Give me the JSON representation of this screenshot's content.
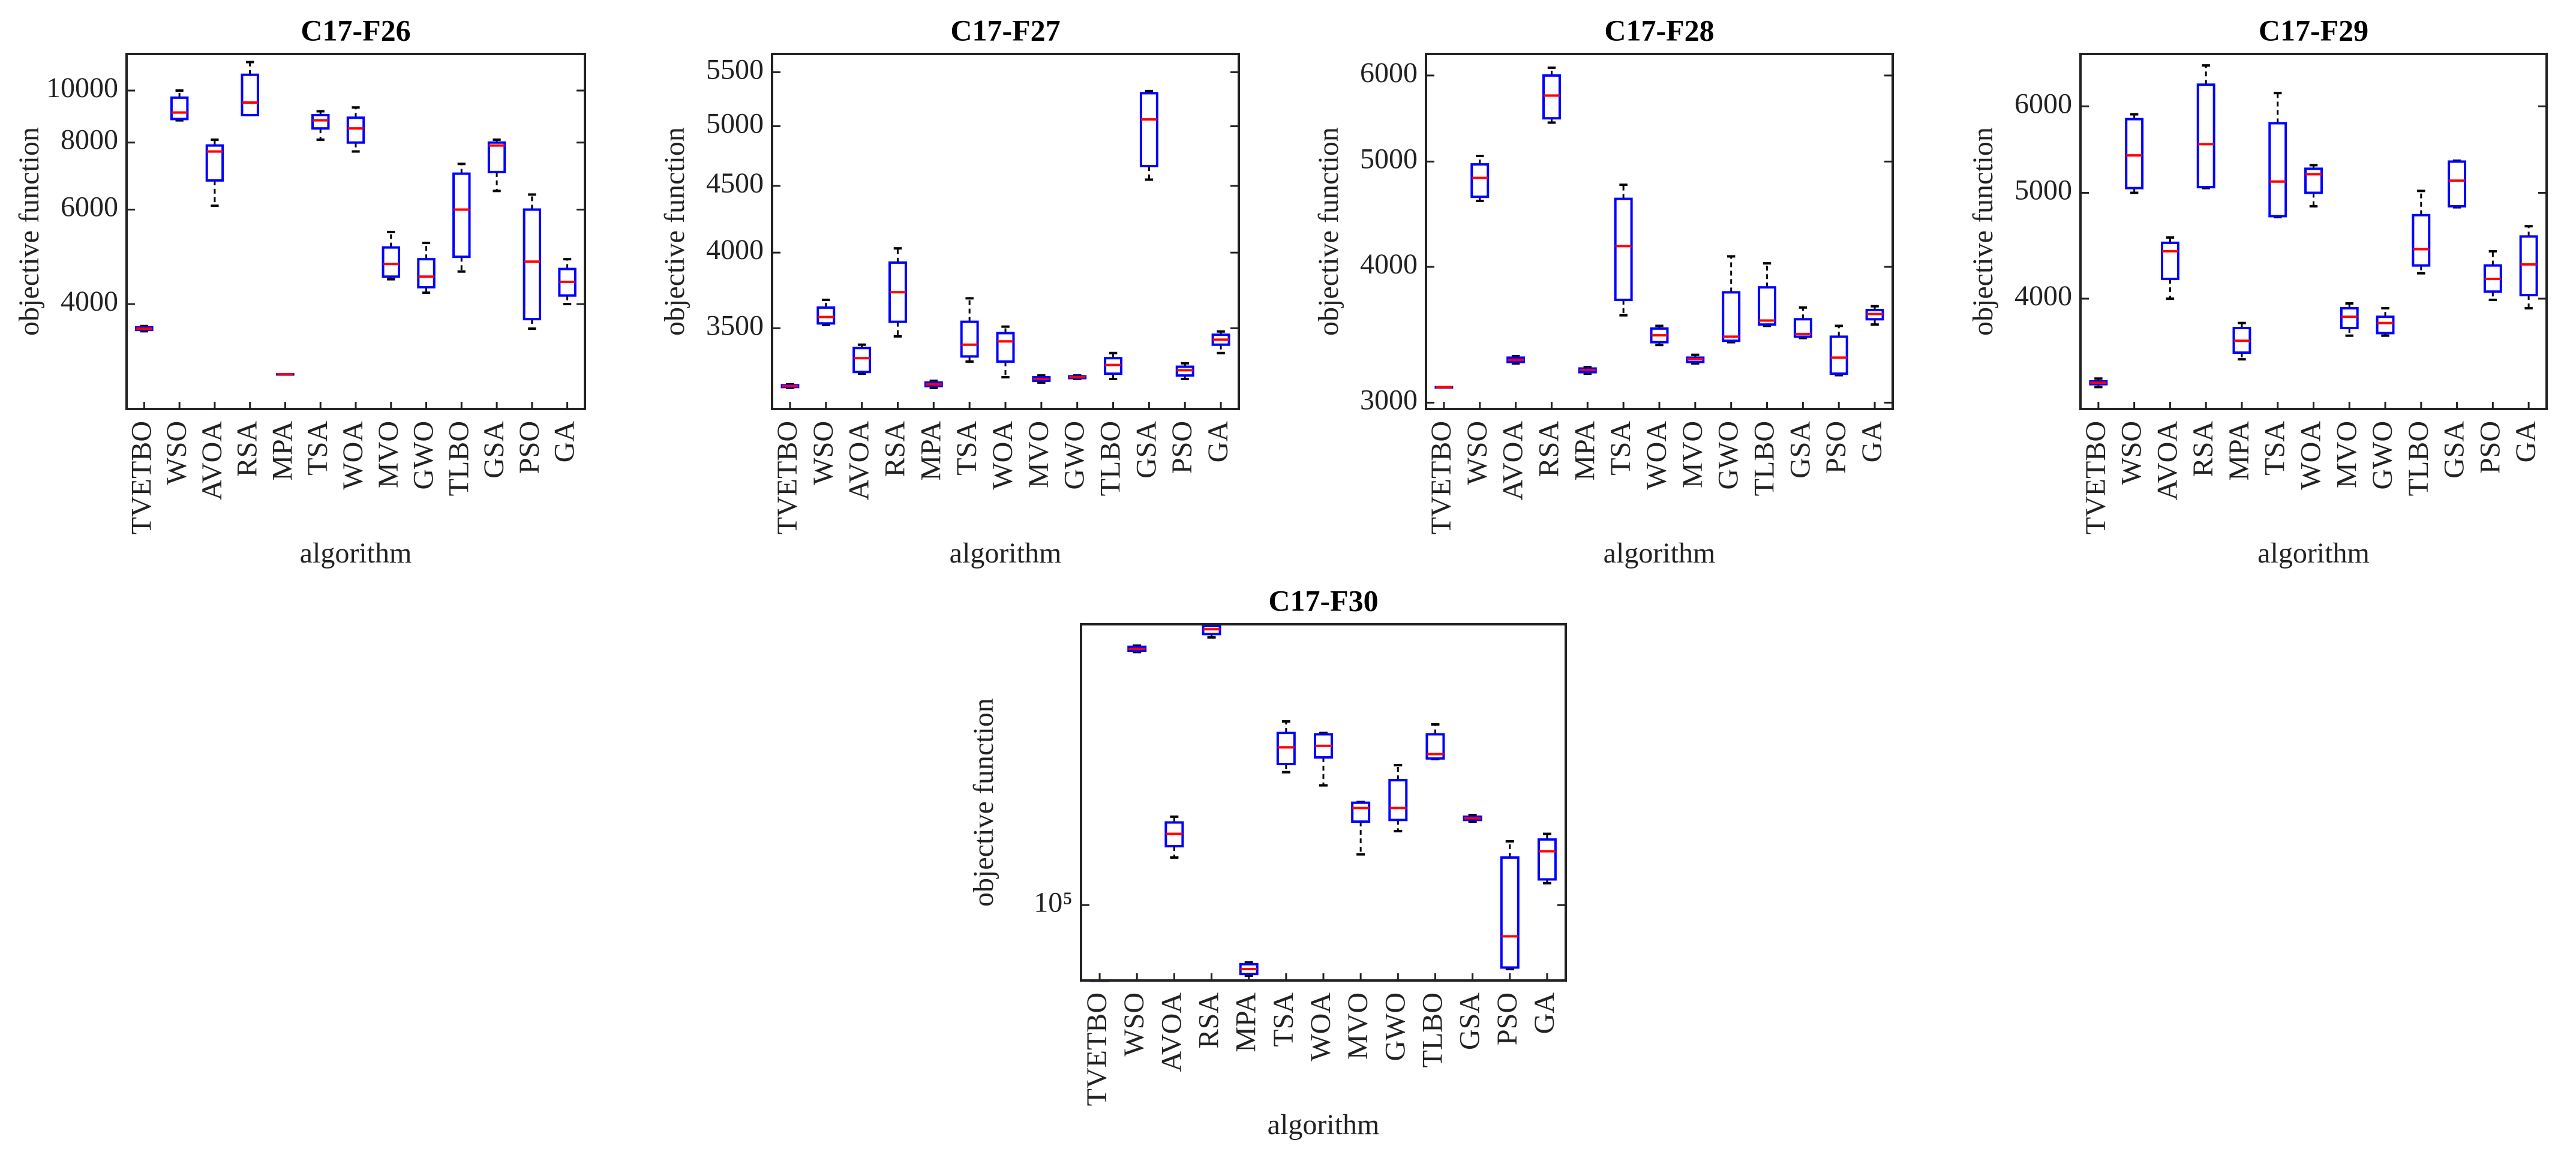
{
  "chart_data": [
    {
      "type": "box",
      "title": "C17-F26",
      "xlabel": "algorithm",
      "ylabel": "objective function",
      "yscale": "log",
      "box_color": "#0000ff",
      "median_color": "#ff0000",
      "whisker_color": "#000000",
      "categories": [
        "TVETBO",
        "WSO",
        "AVOA",
        "RSA",
        "MPA",
        "TSA",
        "WOA",
        "MVO",
        "GWO",
        "TLBO",
        "GSA",
        "PSO",
        "GA"
      ],
      "boxes": [
        {
          "min": 3560,
          "q1": 3580,
          "median": 3600,
          "q3": 3620,
          "max": 3640
        },
        {
          "min": 8800,
          "q1": 8850,
          "median": 9100,
          "q3": 9700,
          "max": 10000
        },
        {
          "min": 6100,
          "q1": 6800,
          "median": 7700,
          "q3": 7900,
          "max": 8100
        },
        {
          "min": 9000,
          "q1": 9000,
          "median": 9500,
          "q3": 10700,
          "max": 11300
        },
        {
          "min": 2960,
          "q1": 2960,
          "median": 2960,
          "q3": 2960,
          "max": 2960
        },
        {
          "min": 8100,
          "q1": 8500,
          "median": 8800,
          "q3": 9000,
          "max": 9150
        },
        {
          "min": 7700,
          "q1": 8000,
          "median": 8500,
          "q3": 8900,
          "max": 9300
        },
        {
          "min": 4450,
          "q1": 4500,
          "median": 4750,
          "q3": 5100,
          "max": 5450
        },
        {
          "min": 4200,
          "q1": 4300,
          "median": 4500,
          "q3": 4850,
          "max": 5200
        },
        {
          "min": 4600,
          "q1": 4900,
          "median": 6000,
          "q3": 7000,
          "max": 7300
        },
        {
          "min": 6500,
          "q1": 7050,
          "median": 7900,
          "q3": 8000,
          "max": 8100
        },
        {
          "min": 3600,
          "q1": 3750,
          "median": 4800,
          "q3": 6000,
          "max": 6400
        },
        {
          "min": 4000,
          "q1": 4150,
          "median": 4400,
          "q3": 4650,
          "max": 4850
        }
      ],
      "ylim": [
        2550,
        11700
      ],
      "yticks": [
        4000,
        6000,
        8000,
        10000
      ]
    },
    {
      "type": "box",
      "title": "C17-F27",
      "xlabel": "algorithm",
      "ylabel": "objective function",
      "yscale": "log",
      "box_color": "#0000ff",
      "median_color": "#ff0000",
      "whisker_color": "#000000",
      "categories": [
        "TVETBO",
        "WSO",
        "AVOA",
        "RSA",
        "MPA",
        "TSA",
        "WOA",
        "MVO",
        "GWO",
        "TLBO",
        "GSA",
        "PSO",
        "GA"
      ],
      "boxes": [
        {
          "min": 3150,
          "q1": 3155,
          "median": 3160,
          "q3": 3165,
          "max": 3170
        },
        {
          "min": 3520,
          "q1": 3530,
          "median": 3570,
          "q3": 3630,
          "max": 3680
        },
        {
          "min": 3230,
          "q1": 3240,
          "median": 3320,
          "q3": 3380,
          "max": 3400
        },
        {
          "min": 3450,
          "q1": 3540,
          "median": 3730,
          "q3": 3930,
          "max": 4030
        },
        {
          "min": 3150,
          "q1": 3160,
          "median": 3170,
          "q3": 3180,
          "max": 3190
        },
        {
          "min": 3300,
          "q1": 3330,
          "median": 3400,
          "q3": 3540,
          "max": 3690
        },
        {
          "min": 3210,
          "q1": 3300,
          "median": 3420,
          "q3": 3470,
          "max": 3510
        },
        {
          "min": 3180,
          "q1": 3190,
          "median": 3200,
          "q3": 3210,
          "max": 3220
        },
        {
          "min": 3200,
          "q1": 3205,
          "median": 3210,
          "q3": 3215,
          "max": 3220
        },
        {
          "min": 3200,
          "q1": 3230,
          "median": 3280,
          "q3": 3320,
          "max": 3350
        },
        {
          "min": 4550,
          "q1": 4660,
          "median": 5060,
          "q3": 5300,
          "max": 5320
        },
        {
          "min": 3200,
          "q1": 3220,
          "median": 3250,
          "q3": 3270,
          "max": 3290
        },
        {
          "min": 3350,
          "q1": 3400,
          "median": 3430,
          "q3": 3460,
          "max": 3480
        }
      ],
      "ylim": [
        3035,
        5680
      ],
      "yticks": [
        3500,
        4000,
        4500,
        5000,
        5500
      ]
    },
    {
      "type": "box",
      "title": "C17-F28",
      "xlabel": "algorithm",
      "ylabel": "objective function",
      "yscale": "log",
      "box_color": "#0000ff",
      "median_color": "#ff0000",
      "whisker_color": "#000000",
      "categories": [
        "TVETBO",
        "WSO",
        "AVOA",
        "RSA",
        "MPA",
        "TSA",
        "WOA",
        "MVO",
        "GWO",
        "TLBO",
        "GSA",
        "PSO",
        "GA"
      ],
      "boxes": [
        {
          "min": 3100,
          "q1": 3100,
          "median": 3100,
          "q3": 3100,
          "max": 3100
        },
        {
          "min": 4600,
          "q1": 4640,
          "median": 4830,
          "q3": 4970,
          "max": 5060
        },
        {
          "min": 3260,
          "q1": 3270,
          "median": 3285,
          "q3": 3300,
          "max": 3310
        },
        {
          "min": 5430,
          "q1": 5480,
          "median": 5750,
          "q3": 6000,
          "max": 6100
        },
        {
          "min": 3190,
          "q1": 3200,
          "median": 3215,
          "q3": 3225,
          "max": 3235
        },
        {
          "min": 3610,
          "q1": 3730,
          "median": 4180,
          "q3": 4620,
          "max": 4760
        },
        {
          "min": 3390,
          "q1": 3410,
          "median": 3460,
          "q3": 3510,
          "max": 3530
        },
        {
          "min": 3260,
          "q1": 3270,
          "median": 3290,
          "q3": 3300,
          "max": 3320
        },
        {
          "min": 3410,
          "q1": 3420,
          "median": 3450,
          "q3": 3790,
          "max": 4090
        },
        {
          "min": 3530,
          "q1": 3540,
          "median": 3570,
          "q3": 3830,
          "max": 4030
        },
        {
          "min": 3440,
          "q1": 3450,
          "median": 3470,
          "q3": 3580,
          "max": 3670
        },
        {
          "min": 3180,
          "q1": 3190,
          "median": 3300,
          "q3": 3450,
          "max": 3530
        },
        {
          "min": 3540,
          "q1": 3580,
          "median": 3620,
          "q3": 3650,
          "max": 3680
        }
      ],
      "ylim": [
        2960,
        6280
      ],
      "yticks": [
        3000,
        4000,
        5000,
        6000
      ]
    },
    {
      "type": "box",
      "title": "C17-F29",
      "xlabel": "algorithm",
      "ylabel": "objective function",
      "yscale": "log",
      "box_color": "#0000ff",
      "median_color": "#ff0000",
      "whisker_color": "#000000",
      "categories": [
        "TVETBO",
        "WSO",
        "AVOA",
        "RSA",
        "MPA",
        "TSA",
        "WOA",
        "MVO",
        "GWO",
        "TLBO",
        "GSA",
        "PSO",
        "GA"
      ],
      "boxes": [
        {
          "min": 3320,
          "q1": 3340,
          "median": 3350,
          "q3": 3360,
          "max": 3380
        },
        {
          "min": 5000,
          "q1": 5050,
          "median": 5410,
          "q3": 5840,
          "max": 5900
        },
        {
          "min": 4000,
          "q1": 4170,
          "median": 4420,
          "q3": 4500,
          "max": 4550
        },
        {
          "min": 5050,
          "q1": 5060,
          "median": 5540,
          "q3": 6280,
          "max": 6540
        },
        {
          "min": 3520,
          "q1": 3570,
          "median": 3660,
          "q3": 3760,
          "max": 3800
        },
        {
          "min": 4750,
          "q1": 4760,
          "median": 5120,
          "q3": 5790,
          "max": 6170
        },
        {
          "min": 4860,
          "q1": 5000,
          "median": 5200,
          "q3": 5260,
          "max": 5300
        },
        {
          "min": 3700,
          "q1": 3760,
          "median": 3850,
          "q3": 3920,
          "max": 3960
        },
        {
          "min": 3700,
          "q1": 3720,
          "median": 3800,
          "q3": 3850,
          "max": 3920
        },
        {
          "min": 4220,
          "q1": 4290,
          "median": 4440,
          "q3": 4770,
          "max": 5020
        },
        {
          "min": 4850,
          "q1": 4860,
          "median": 5130,
          "q3": 5340,
          "max": 5350
        },
        {
          "min": 3990,
          "q1": 4060,
          "median": 4170,
          "q3": 4290,
          "max": 4420
        },
        {
          "min": 3920,
          "q1": 4030,
          "median": 4300,
          "q3": 4560,
          "max": 4660
        }
      ],
      "ylim": [
        3170,
        6700
      ],
      "yticks": [
        4000,
        5000,
        6000
      ]
    },
    {
      "type": "box",
      "title": "C17-F30",
      "xlabel": "algorithm",
      "ylabel": "objective function",
      "yscale": "log",
      "box_color": "#0000ff",
      "median_color": "#ff0000",
      "whisker_color": "#000000",
      "categories": [
        "TVETBO",
        "WSO",
        "AVOA",
        "RSA",
        "MPA",
        "TSA",
        "WOA",
        "MVO",
        "GWO",
        "TLBO",
        "GSA",
        "PSO",
        "GA"
      ],
      "boxes": [
        {
          "min": 60000,
          "q1": 60000,
          "median": 60000,
          "q3": 60000,
          "max": 60000
        },
        {
          "min": 555000,
          "q1": 560000,
          "median": 567000,
          "q3": 575000,
          "max": 580000
        },
        {
          "min": 138000,
          "q1": 149000,
          "median": 162000,
          "q3": 175000,
          "max": 182000
        },
        {
          "min": 613000,
          "q1": 627000,
          "median": 648000,
          "q3": 662000,
          "max": 668000
        },
        {
          "min": 62000,
          "q1": 62700,
          "median": 64800,
          "q3": 67000,
          "max": 67800
        },
        {
          "min": 246000,
          "q1": 260000,
          "median": 291000,
          "q3": 321000,
          "max": 347000
        },
        {
          "min": 225000,
          "q1": 272000,
          "median": 294000,
          "q3": 318000,
          "max": 321000
        },
        {
          "min": 141000,
          "q1": 176000,
          "median": 193000,
          "q3": 200000,
          "max": 201000
        },
        {
          "min": 165000,
          "q1": 178000,
          "median": 193000,
          "q3": 233000,
          "max": 258000
        },
        {
          "min": 269000,
          "q1": 270000,
          "median": 278000,
          "q3": 318000,
          "max": 340000
        },
        {
          "min": 176000,
          "q1": 178000,
          "median": 180000,
          "q3": 182000,
          "max": 184000
        },
        {
          "min": 64800,
          "q1": 65500,
          "median": 80900,
          "q3": 138000,
          "max": 154000
        },
        {
          "min": 116000,
          "q1": 119000,
          "median": 144000,
          "q3": 156000,
          "max": 162000
        }
      ],
      "ylim": [
        60000,
        670000
      ],
      "yticks": [
        {
          "value": 100000,
          "label": "10⁵"
        }
      ]
    }
  ]
}
